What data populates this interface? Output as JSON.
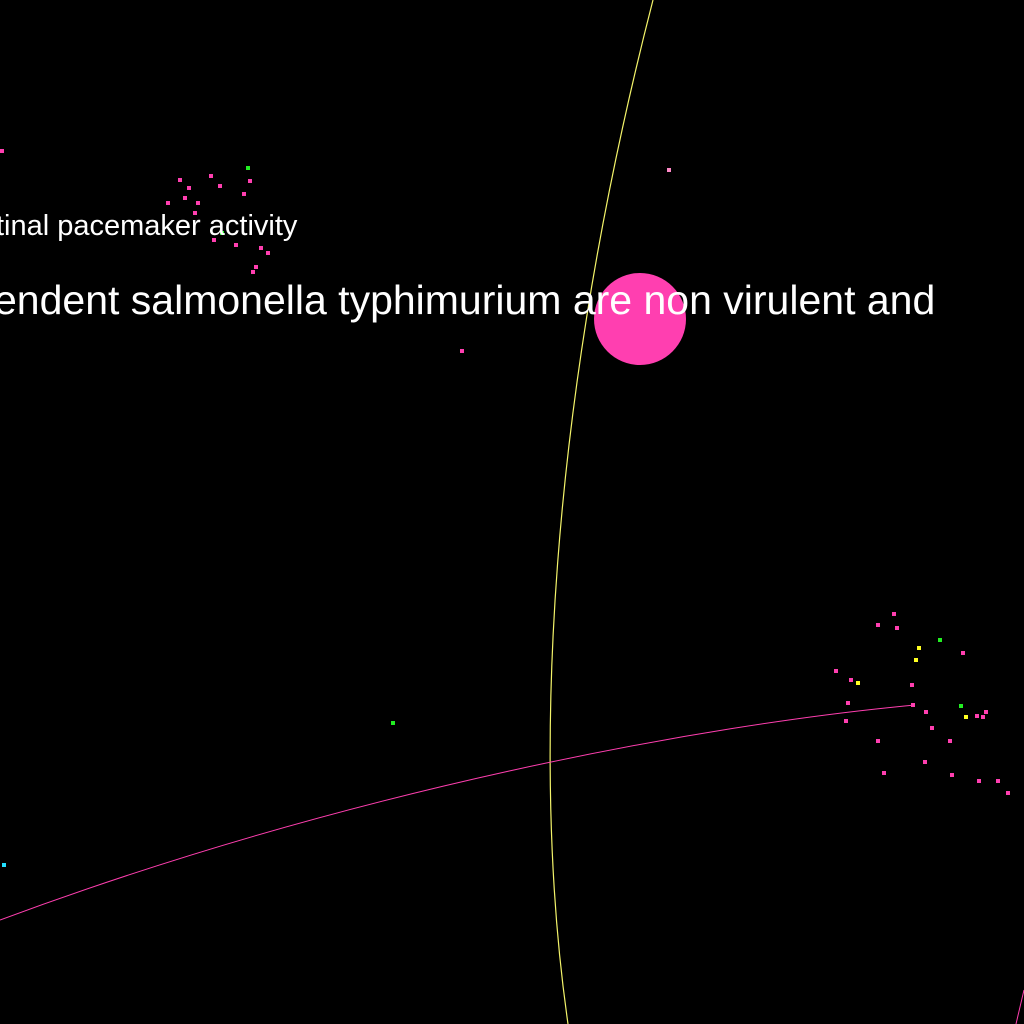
{
  "colors": {
    "background": "#000000",
    "pink": "#ff3fb0",
    "pink_light": "#ff8ac8",
    "green": "#22ee22",
    "yellow": "#ffff22",
    "yellow_line": "#f4f46a",
    "cyan": "#22e0ff",
    "label": "#ffffff"
  },
  "labels": {
    "small": "tinal pacemaker activity",
    "large": "endent salmonella typhimurium are non virulent and"
  }
}
